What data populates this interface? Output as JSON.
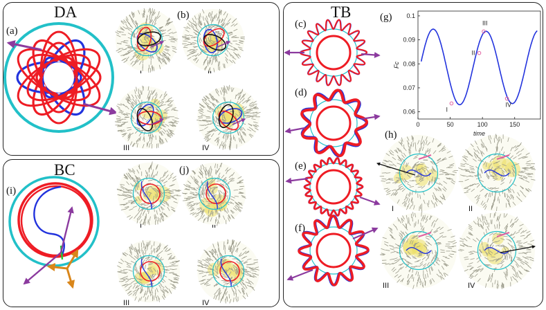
{
  "panels": {
    "da": {
      "title": "DA"
    },
    "bc": {
      "title": "BC"
    },
    "tb": {
      "title": "TB"
    }
  },
  "labels": {
    "a": "(a)",
    "b": "(b)",
    "c": "(c)",
    "d": "(d)",
    "e": "(e)",
    "f": "(f)",
    "g": "(g)",
    "h": "(h)",
    "i": "(i)",
    "j": "(j)"
  },
  "roman": {
    "i": "I",
    "ii": "II",
    "iii": "III",
    "iv": "IV"
  },
  "colors": {
    "red": "#ee1c24",
    "blue": "#2233dd",
    "cyan": "#22c0c8",
    "purple": "#8b3a9e",
    "orange": "#d9861a",
    "green": "#22cc33",
    "fiber": "#9a9a8a",
    "yellow": "#ece06a",
    "curve": "#2233dd",
    "marker": "#e060a0"
  },
  "chart_data": {
    "type": "line",
    "ylabel": "Fc",
    "xlabel": "time",
    "xlim": [
      0,
      190
    ],
    "ylim": [
      0.057,
      0.102
    ],
    "xticks": [
      "0",
      "50",
      "100",
      "150"
    ],
    "yticks": [
      "0.06",
      "0.07",
      "0.08",
      "0.09",
      "0.1"
    ],
    "series": [
      {
        "values_note": "periodic",
        "x": [
          5,
          15,
          25,
          35,
          45,
          55,
          65,
          75,
          85,
          95,
          105,
          115,
          125,
          135,
          145,
          155,
          165,
          175,
          185
        ],
        "y": [
          0.083,
          0.092,
          0.09,
          0.077,
          0.066,
          0.063,
          0.066,
          0.077,
          0.089,
          0.094,
          0.088,
          0.075,
          0.065,
          0.063,
          0.066,
          0.074,
          0.081,
          0.087,
          0.092
        ]
      }
    ],
    "markers": [
      {
        "label": "I",
        "x": 52,
        "y": 0.0635
      },
      {
        "label": "II",
        "x": 95,
        "y": 0.0845
      },
      {
        "label": "III",
        "x": 102,
        "y": 0.0935
      },
      {
        "label": "IV",
        "x": 138,
        "y": 0.0655
      }
    ]
  }
}
